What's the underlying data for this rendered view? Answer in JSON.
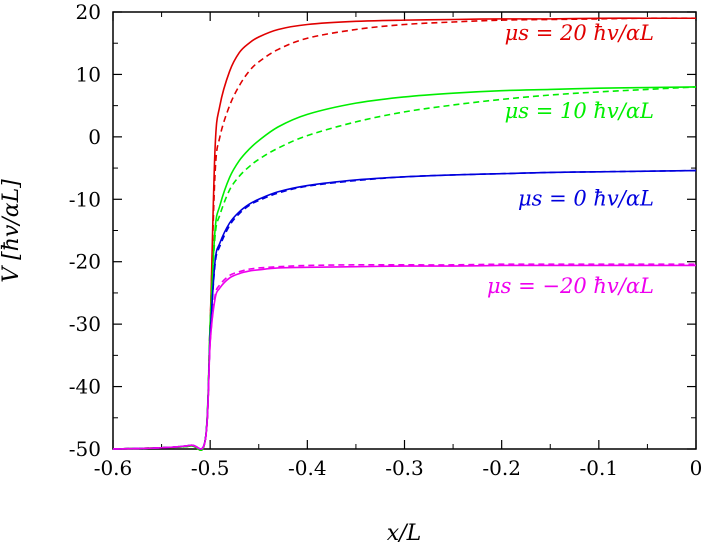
{
  "chart_data": {
    "type": "line",
    "xlabel": "x/L",
    "ylabel": "V [ħv/αL]",
    "xlim": [
      -0.6,
      0
    ],
    "ylim": [
      -50,
      20
    ],
    "grid": false,
    "x_ticks": [
      -0.6,
      -0.5,
      -0.4,
      -0.3,
      -0.2,
      -0.1,
      0
    ],
    "x_tick_labels": [
      "-0.6",
      "-0.5",
      "-0.4",
      "-0.3",
      "-0.2",
      "-0.1",
      "0"
    ],
    "y_ticks": [
      20,
      10,
      0,
      -10,
      -20,
      -30,
      -40,
      -50
    ],
    "y_tick_labels": [
      "20",
      "10",
      "0",
      "-10",
      "-20",
      "-30",
      "-40",
      "-50"
    ],
    "series": [
      {
        "name": "μs = 20 ħv/αL",
        "color": "#e00000",
        "style": "solid",
        "x": [
          -0.6,
          -0.55,
          -0.52,
          -0.505,
          -0.5,
          -0.495,
          -0.49,
          -0.48,
          -0.47,
          -0.46,
          -0.45,
          -0.43,
          -0.4,
          -0.35,
          -0.3,
          -0.25,
          -0.2,
          -0.15,
          -0.1,
          -0.05,
          0
        ],
        "y": [
          -50,
          -49.8,
          -49.5,
          -48.5,
          -30,
          -2,
          5,
          10.5,
          13.5,
          15,
          16,
          17.2,
          18,
          18.5,
          18.7,
          18.8,
          18.9,
          18.9,
          19,
          19,
          19
        ]
      },
      {
        "name": "μs = 20 ħv/αL",
        "color": "#e00000",
        "style": "dashed",
        "x": [
          -0.6,
          -0.55,
          -0.52,
          -0.505,
          -0.5,
          -0.495,
          -0.49,
          -0.48,
          -0.47,
          -0.46,
          -0.45,
          -0.43,
          -0.4,
          -0.35,
          -0.3,
          -0.25,
          -0.2,
          -0.15,
          -0.1,
          -0.05,
          0
        ],
        "y": [
          -50,
          -49.8,
          -49.5,
          -48.5,
          -30,
          -6,
          0,
          5,
          8.2,
          10.5,
          12,
          14,
          15.8,
          17.2,
          18,
          18.4,
          18.7,
          18.8,
          18.9,
          19,
          19
        ]
      },
      {
        "name": "μs = 10 ħv/αL",
        "color": "#00ee00",
        "style": "solid",
        "x": [
          -0.6,
          -0.55,
          -0.52,
          -0.505,
          -0.5,
          -0.495,
          -0.49,
          -0.48,
          -0.47,
          -0.46,
          -0.45,
          -0.43,
          -0.4,
          -0.35,
          -0.3,
          -0.25,
          -0.2,
          -0.15,
          -0.1,
          -0.05,
          0
        ],
        "y": [
          -50,
          -49.8,
          -49.5,
          -48.5,
          -30,
          -15,
          -11,
          -6.5,
          -3.8,
          -2,
          -0.6,
          1.6,
          3.6,
          5.4,
          6.4,
          7,
          7.4,
          7.6,
          7.8,
          7.9,
          8
        ]
      },
      {
        "name": "μs = 10 ħv/αL",
        "color": "#00ee00",
        "style": "dashed",
        "x": [
          -0.6,
          -0.55,
          -0.52,
          -0.505,
          -0.5,
          -0.495,
          -0.49,
          -0.48,
          -0.47,
          -0.46,
          -0.45,
          -0.43,
          -0.4,
          -0.35,
          -0.3,
          -0.25,
          -0.2,
          -0.15,
          -0.1,
          -0.05,
          0
        ],
        "y": [
          -50,
          -49.8,
          -49.5,
          -48.5,
          -30,
          -16,
          -12.5,
          -8.5,
          -6.3,
          -4.8,
          -3.6,
          -1.8,
          0.2,
          2.4,
          4,
          5.1,
          6,
          6.7,
          7.2,
          7.6,
          8
        ]
      },
      {
        "name": "μs = 0 ħv/αL",
        "color": "#0000dd",
        "style": "solid",
        "x": [
          -0.6,
          -0.55,
          -0.52,
          -0.505,
          -0.5,
          -0.495,
          -0.49,
          -0.48,
          -0.47,
          -0.46,
          -0.45,
          -0.43,
          -0.4,
          -0.35,
          -0.3,
          -0.25,
          -0.2,
          -0.15,
          -0.1,
          -0.05,
          0
        ],
        "y": [
          -50,
          -49.8,
          -49.4,
          -48.5,
          -32,
          -20,
          -17,
          -13.8,
          -12,
          -10.8,
          -10,
          -8.8,
          -7.8,
          -6.9,
          -6.4,
          -6.1,
          -5.9,
          -5.7,
          -5.6,
          -5.5,
          -5.4
        ]
      },
      {
        "name": "μs = 0 ħv/αL",
        "color": "#0000dd",
        "style": "dashed",
        "x": [
          -0.6,
          -0.55,
          -0.52,
          -0.505,
          -0.5,
          -0.495,
          -0.49,
          -0.48,
          -0.47,
          -0.46,
          -0.45,
          -0.43,
          -0.4,
          -0.35,
          -0.3,
          -0.25,
          -0.2,
          -0.15,
          -0.1,
          -0.05,
          0
        ],
        "y": [
          -50,
          -49.8,
          -49.4,
          -48.5,
          -32,
          -20.5,
          -17.5,
          -14.2,
          -12.3,
          -11,
          -10.2,
          -9,
          -7.9,
          -7,
          -6.4,
          -6.1,
          -5.9,
          -5.7,
          -5.6,
          -5.5,
          -5.4
        ]
      },
      {
        "name": "μs = −20 ħv/αL",
        "color": "#ee00ee",
        "style": "solid",
        "x": [
          -0.6,
          -0.55,
          -0.52,
          -0.505,
          -0.5,
          -0.495,
          -0.49,
          -0.48,
          -0.47,
          -0.46,
          -0.45,
          -0.43,
          -0.4,
          -0.35,
          -0.3,
          -0.25,
          -0.2,
          -0.15,
          -0.1,
          -0.05,
          0
        ],
        "y": [
          -50,
          -49.8,
          -49.4,
          -48.6,
          -33,
          -26,
          -24.2,
          -22.6,
          -21.9,
          -21.5,
          -21.3,
          -21,
          -20.9,
          -20.8,
          -20.7,
          -20.7,
          -20.6,
          -20.6,
          -20.6,
          -20.6,
          -20.6
        ]
      },
      {
        "name": "μs = −20 ħv/αL",
        "color": "#ee00ee",
        "style": "dashed",
        "x": [
          -0.6,
          -0.55,
          -0.52,
          -0.505,
          -0.5,
          -0.495,
          -0.49,
          -0.48,
          -0.47,
          -0.46,
          -0.45,
          -0.43,
          -0.4,
          -0.35,
          -0.3,
          -0.25,
          -0.2,
          -0.15,
          -0.1,
          -0.05,
          0
        ],
        "y": [
          -50,
          -49.8,
          -49.4,
          -48.6,
          -33,
          -25.5,
          -23.7,
          -22.2,
          -21.6,
          -21.2,
          -21,
          -20.8,
          -20.6,
          -20.5,
          -20.5,
          -20.5,
          -20.4,
          -20.4,
          -20.4,
          -20.4,
          -20.4
        ]
      }
    ],
    "labels": [
      {
        "text": "μs = 20 ħv/αL",
        "color": "#e00000"
      },
      {
        "text": "μs = 10 ħv/αL",
        "color": "#00ee00"
      },
      {
        "text": "μs = 0 ħv/αL",
        "color": "#0000dd"
      },
      {
        "text": "μs = −20 ħv/αL",
        "color": "#ee00ee"
      }
    ]
  }
}
